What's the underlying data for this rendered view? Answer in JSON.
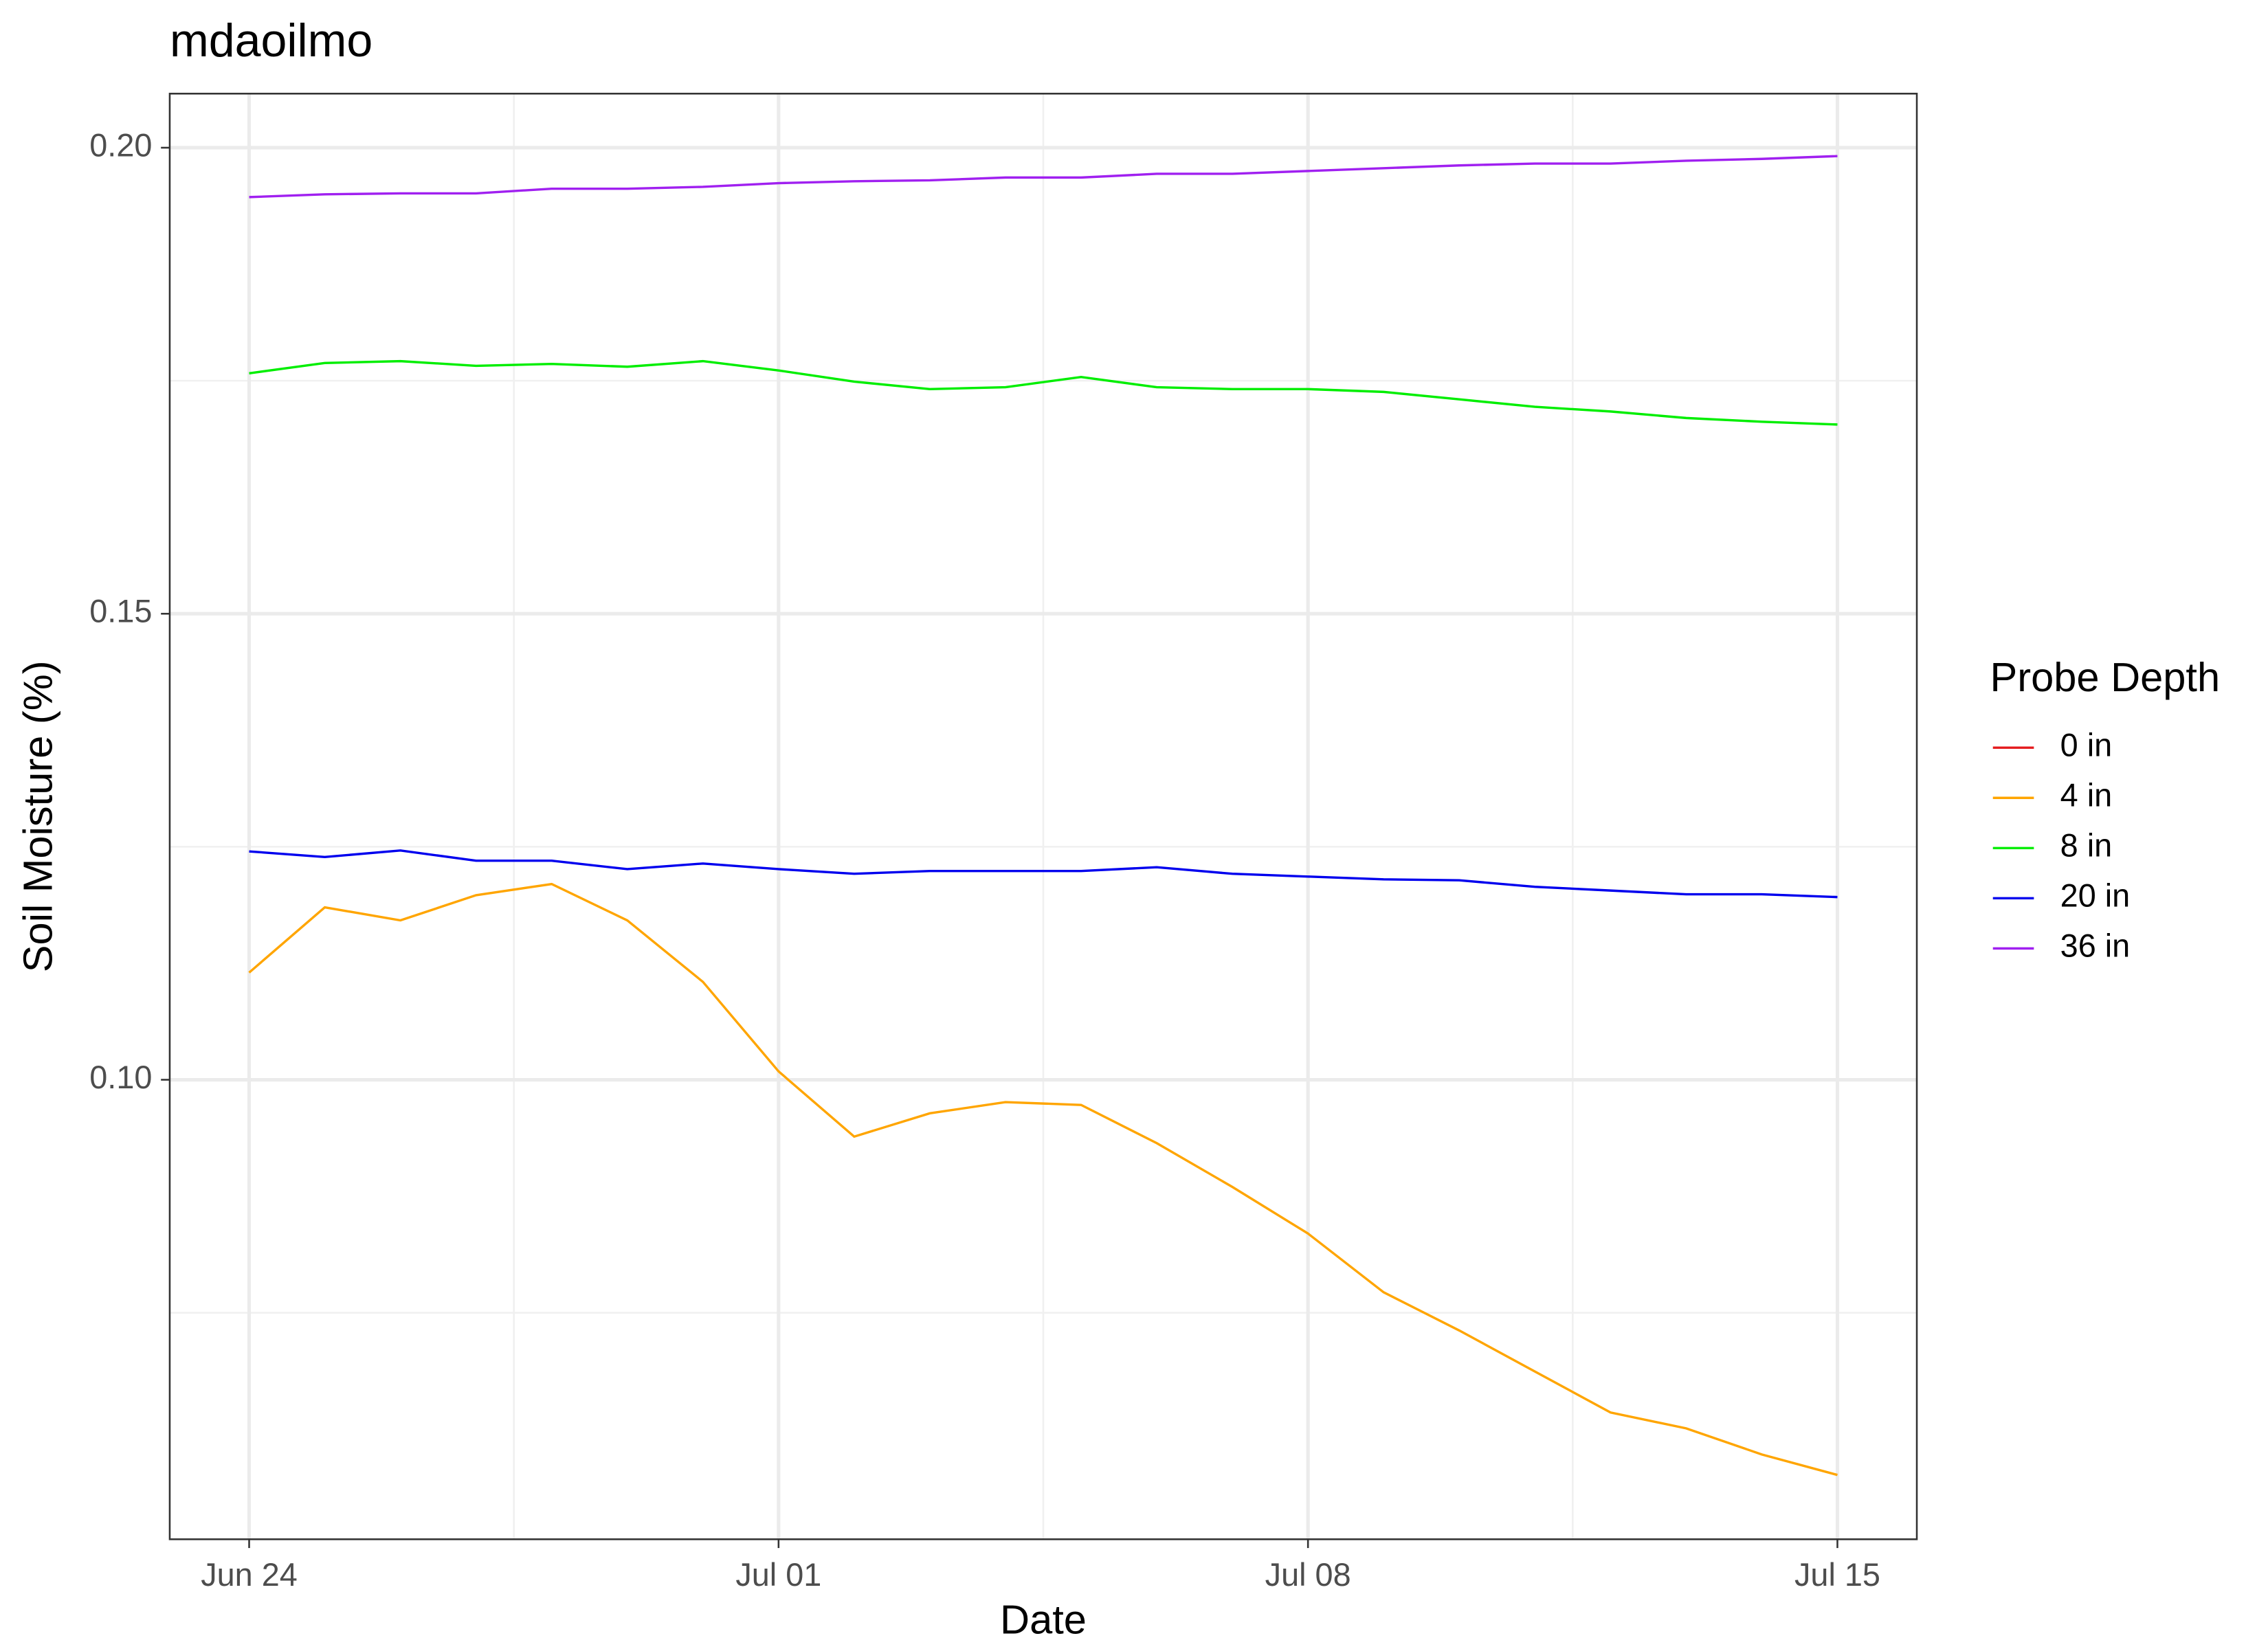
{
  "chart_data": {
    "type": "line",
    "title": "mdaoilmo",
    "x_label": "Date",
    "y_label": "Soil Moisture (%)",
    "legend_title": "Probe Depth",
    "categories": [
      "Jun 24",
      "Jun 25",
      "Jun 26",
      "Jun 27",
      "Jun 28",
      "Jun 29",
      "Jun 30",
      "Jul 01",
      "Jul 02",
      "Jul 03",
      "Jul 04",
      "Jul 05",
      "Jul 06",
      "Jul 07",
      "Jul 08",
      "Jul 09",
      "Jul 10",
      "Jul 11",
      "Jul 12",
      "Jul 13",
      "Jul 14",
      "Jul 15"
    ],
    "xticks": [
      "Jun 24",
      "Jul 01",
      "Jul 08",
      "Jul 15"
    ],
    "ylim": [
      0.0507,
      0.2058
    ],
    "yticks": [
      {
        "value": 0.1,
        "label": "0.10"
      },
      0.15,
      {
        "value": 0.2,
        "label": "0.20"
      }
    ],
    "yminorticks": [
      0.075,
      0.125,
      0.175
    ],
    "grid": true,
    "legend": "right",
    "series": [
      {
        "name": "0 in",
        "color": "#e41a1c",
        "values": [
          null,
          null,
          null,
          null,
          null,
          null,
          null,
          null,
          null,
          null,
          null,
          null,
          null,
          null,
          null,
          null,
          null,
          null,
          null,
          null,
          null,
          null
        ]
      },
      {
        "name": "4 in",
        "color": "#ffa500",
        "values": [
          0.1115,
          0.1185,
          0.1171,
          0.1198,
          0.121,
          0.1171,
          0.1105,
          0.1009,
          0.0939,
          0.0964,
          0.0976,
          0.0973,
          0.0932,
          0.0885,
          0.0835,
          0.0772,
          0.0731,
          0.0687,
          0.0643,
          0.0626,
          0.0598,
          0.0576
        ]
      },
      {
        "name": "8 in",
        "color": "#00ee00",
        "values": [
          0.1758,
          0.1769,
          0.1771,
          0.1766,
          0.1768,
          0.1765,
          0.1771,
          0.1761,
          0.1749,
          0.1741,
          0.1743,
          0.1754,
          0.1743,
          0.1741,
          0.1741,
          0.1738,
          0.173,
          0.1722,
          0.1717,
          0.171,
          0.1706,
          0.1703
        ]
      },
      {
        "name": "20 in",
        "color": "#0000ee",
        "values": [
          0.1245,
          0.1239,
          0.1246,
          0.1235,
          0.1235,
          0.1226,
          0.1232,
          0.1226,
          0.1221,
          0.1224,
          0.1224,
          0.1224,
          0.1228,
          0.1221,
          0.1218,
          0.1215,
          0.1214,
          0.1207,
          0.1203,
          0.1199,
          0.1199,
          0.1196
        ]
      },
      {
        "name": "36 in",
        "color": "#a020f0",
        "values": [
          0.1947,
          0.195,
          0.1951,
          0.1951,
          0.1956,
          0.1956,
          0.1958,
          0.1962,
          0.1964,
          0.1965,
          0.1968,
          0.1968,
          0.1972,
          0.1972,
          0.1975,
          0.1978,
          0.1981,
          0.1983,
          0.1983,
          0.1986,
          0.1988,
          0.1991
        ]
      }
    ]
  }
}
